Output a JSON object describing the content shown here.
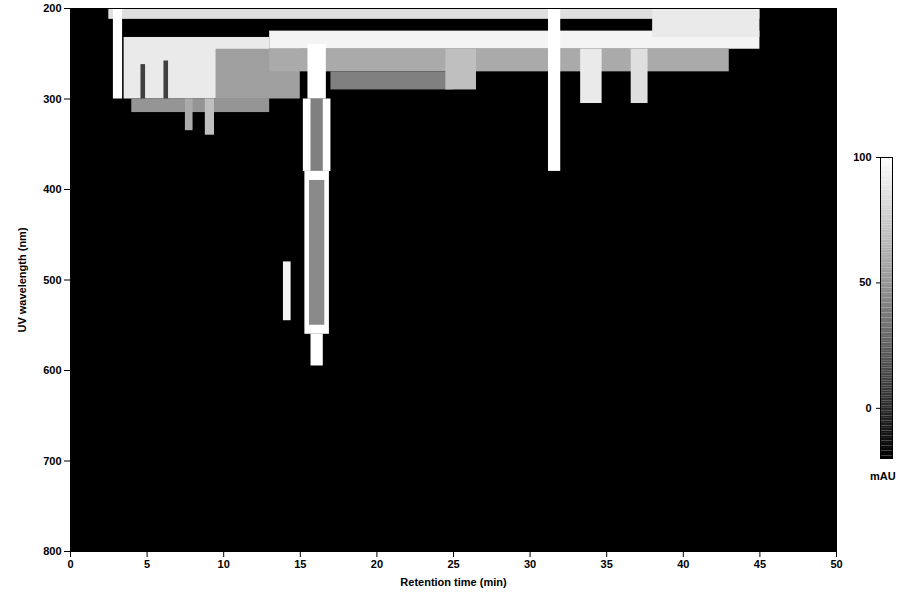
{
  "chart_data": {
    "type": "heatmap",
    "x_label": "Retention time (min)",
    "y_label": "UV wavelength (nm)",
    "xlim": [
      0,
      50
    ],
    "xticks": [
      0,
      5,
      10,
      15,
      20,
      25,
      30,
      35,
      40,
      45,
      50
    ],
    "ylim": [
      200,
      800
    ],
    "yticks": [
      200,
      300,
      400,
      500,
      600,
      700,
      800
    ],
    "cells": [
      {
        "x1": 2.5,
        "x2": 45,
        "y1": 200,
        "y2": 212,
        "value": 85
      },
      {
        "x1": 2.8,
        "x2": 3.4,
        "y1": 200,
        "y2": 300,
        "value": 100
      },
      {
        "x1": 3.5,
        "x2": 13,
        "y1": 232,
        "y2": 300,
        "value": 90
      },
      {
        "x1": 4,
        "x2": 13,
        "y1": 300,
        "y2": 315,
        "value": 50
      },
      {
        "x1": 7.5,
        "x2": 8,
        "y1": 300,
        "y2": 335,
        "value": 60
      },
      {
        "x1": 8.8,
        "x2": 9.4,
        "y1": 300,
        "y2": 340,
        "value": 70
      },
      {
        "x1": 4.6,
        "x2": 4.9,
        "y1": 262,
        "y2": 300,
        "value": 10
      },
      {
        "x1": 6.1,
        "x2": 6.4,
        "y1": 258,
        "y2": 300,
        "value": 10
      },
      {
        "x1": 9.5,
        "x2": 15,
        "y1": 245,
        "y2": 300,
        "value": 55
      },
      {
        "x1": 13,
        "x2": 45,
        "y1": 225,
        "y2": 245,
        "value": 95
      },
      {
        "x1": 13,
        "x2": 43,
        "y1": 245,
        "y2": 270,
        "value": 60
      },
      {
        "x1": 17,
        "x2": 25,
        "y1": 270,
        "y2": 290,
        "value": 40
      },
      {
        "x1": 24.5,
        "x2": 26.5,
        "y1": 245,
        "y2": 290,
        "value": 70
      },
      {
        "x1": 15.5,
        "x2": 16.7,
        "y1": 240,
        "y2": 300,
        "value": 100
      },
      {
        "x1": 15.2,
        "x2": 17,
        "y1": 300,
        "y2": 380,
        "value": 100
      },
      {
        "x1": 15.7,
        "x2": 16.5,
        "y1": 300,
        "y2": 380,
        "value": 40
      },
      {
        "x1": 15.3,
        "x2": 16.9,
        "y1": 380,
        "y2": 560,
        "value": 100
      },
      {
        "x1": 15.6,
        "x2": 16.6,
        "y1": 390,
        "y2": 550,
        "value": 45
      },
      {
        "x1": 15.7,
        "x2": 16.5,
        "y1": 560,
        "y2": 595,
        "value": 100
      },
      {
        "x1": 13.9,
        "x2": 14.4,
        "y1": 480,
        "y2": 545,
        "value": 95
      },
      {
        "x1": 31.2,
        "x2": 32,
        "y1": 200,
        "y2": 380,
        "value": 100
      },
      {
        "x1": 33.3,
        "x2": 34.7,
        "y1": 245,
        "y2": 305,
        "value": 90
      },
      {
        "x1": 36.6,
        "x2": 37.7,
        "y1": 245,
        "y2": 305,
        "value": 85
      },
      {
        "x1": 38,
        "x2": 45,
        "y1": 200,
        "y2": 232,
        "value": 90
      }
    ],
    "colorbar": {
      "label": "mAU",
      "range": [
        -20,
        100
      ],
      "ticks": [
        0,
        50,
        100
      ]
    }
  }
}
